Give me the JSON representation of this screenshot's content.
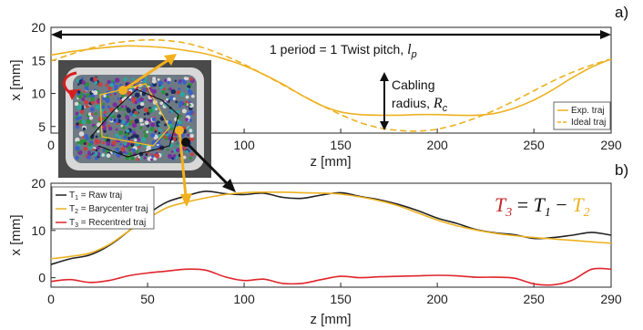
{
  "colors": {
    "exp": "#EDB120",
    "raw": "#222222",
    "bary": "#EDB120",
    "recentred": "#E0242B",
    "cable_red": "#D81E1E",
    "arrow_orange": "#F2B01E"
  },
  "chart_data": [
    {
      "type": "line",
      "panel_label": "a)",
      "xlabel": "z [mm]",
      "ylabel": "x [mm]",
      "xlim": [
        0,
        290
      ],
      "ylim": [
        4,
        20
      ],
      "xticks": [
        0,
        50,
        100,
        150,
        200,
        250,
        290
      ],
      "xtick_labels": [
        "0",
        "50",
        "100",
        "150",
        "200",
        "250",
        "290"
      ],
      "yticks": [
        5,
        10,
        15,
        20
      ],
      "ytick_labels": [
        "5",
        "10",
        "15",
        "20"
      ],
      "legend_position": "bottom-right",
      "series": [
        {
          "name": "Exp. traj",
          "style": "solid",
          "x": [
            0,
            10,
            20,
            30,
            40,
            50,
            60,
            70,
            80,
            90,
            100,
            110,
            120,
            130,
            140,
            150,
            160,
            170,
            180,
            190,
            200,
            210,
            220,
            230,
            240,
            250,
            260,
            270,
            280,
            290
          ],
          "y": [
            15.8,
            16.3,
            16.7,
            17.0,
            17.2,
            17.1,
            16.9,
            16.5,
            16.0,
            15.2,
            14.2,
            12.9,
            11.4,
            9.7,
            8.2,
            7.2,
            6.8,
            6.7,
            6.7,
            6.8,
            6.8,
            6.7,
            6.7,
            7.0,
            7.8,
            9.0,
            10.6,
            12.4,
            14.0,
            15.2
          ]
        },
        {
          "name": "Ideal traj",
          "style": "dashed",
          "x": [
            0,
            10,
            20,
            30,
            40,
            50,
            60,
            70,
            80,
            90,
            100,
            110,
            120,
            130,
            140,
            150,
            160,
            170,
            180,
            190,
            200,
            210,
            220,
            230,
            240,
            250,
            260,
            270,
            280,
            290
          ],
          "y": [
            14.9,
            15.9,
            16.8,
            17.5,
            17.9,
            18.1,
            18.0,
            17.6,
            16.8,
            15.7,
            14.4,
            12.9,
            11.3,
            9.7,
            8.2,
            6.8,
            5.6,
            4.8,
            4.4,
            4.3,
            4.6,
            5.3,
            6.3,
            7.5,
            8.9,
            10.4,
            11.9,
            13.2,
            14.3,
            15.2
          ]
        }
      ],
      "annotations": {
        "twist_pitch_text": "1 period = 1 Twist pitch, ",
        "twist_pitch_symbol": "l",
        "twist_pitch_sub": "p",
        "radius_line1": "Cabling",
        "radius_line2": "radius, ",
        "radius_symbol": "R",
        "radius_sub": "c"
      }
    },
    {
      "type": "line",
      "panel_label": "b)",
      "xlabel": "z [mm]",
      "ylabel": "x [mm]",
      "xlim": [
        0,
        290
      ],
      "ylim": [
        -2,
        20
      ],
      "xticks": [
        0,
        50,
        100,
        150,
        200,
        250,
        290
      ],
      "xtick_labels": [
        "0",
        "50",
        "100",
        "150",
        "200",
        "250",
        "290"
      ],
      "yticks": [
        0,
        10,
        20
      ],
      "ytick_labels": [
        "0",
        "10",
        "20"
      ],
      "legend_position": "top-left",
      "series": [
        {
          "sym": "T",
          "sub": "1",
          "name": " = Raw traj",
          "x": [
            0,
            10,
            20,
            30,
            40,
            50,
            60,
            70,
            80,
            90,
            100,
            110,
            120,
            130,
            140,
            150,
            160,
            170,
            180,
            190,
            200,
            210,
            220,
            230,
            240,
            250,
            260,
            270,
            280,
            290
          ],
          "y": [
            2.8,
            4.0,
            4.8,
            6.8,
            9.8,
            13.4,
            16.0,
            17.3,
            18.3,
            17.8,
            17.6,
            17.9,
            17.0,
            16.8,
            17.5,
            18.0,
            17.2,
            16.5,
            15.5,
            14.2,
            12.6,
            11.5,
            10.2,
            9.5,
            9.1,
            8.3,
            8.5,
            9.0,
            9.6,
            9.0
          ]
        },
        {
          "sym": "T",
          "sub": "2",
          "name": " = Barycenter traj",
          "x": [
            0,
            10,
            20,
            30,
            40,
            50,
            60,
            70,
            80,
            90,
            100,
            110,
            120,
            130,
            140,
            150,
            160,
            170,
            180,
            190,
            200,
            210,
            220,
            230,
            240,
            250,
            260,
            270,
            280,
            290
          ],
          "y": [
            4.0,
            4.5,
            5.2,
            7.0,
            9.8,
            12.5,
            14.8,
            16.0,
            16.9,
            17.6,
            18.0,
            18.1,
            18.1,
            18.0,
            17.9,
            17.7,
            17.1,
            16.3,
            15.2,
            13.7,
            12.2,
            11.0,
            10.1,
            9.4,
            8.9,
            8.5,
            8.2,
            7.9,
            7.6,
            7.3
          ]
        },
        {
          "sym": "T",
          "sub": "3",
          "name": " = Recentred traj",
          "x": [
            0,
            10,
            20,
            30,
            40,
            50,
            60,
            70,
            80,
            90,
            100,
            110,
            120,
            130,
            140,
            150,
            160,
            170,
            180,
            190,
            200,
            210,
            220,
            230,
            240,
            250,
            260,
            270,
            280,
            290
          ],
          "y": [
            -0.8,
            -0.4,
            -1.0,
            -0.6,
            0.4,
            1.0,
            1.4,
            1.8,
            1.6,
            0.2,
            -0.6,
            -0.3,
            -1.2,
            -1.2,
            -0.4,
            0.3,
            0.0,
            0.2,
            0.3,
            0.4,
            0.5,
            0.4,
            0.1,
            0.1,
            -0.1,
            -1.3,
            -1.5,
            -0.5,
            1.8,
            1.8
          ]
        }
      ],
      "equation": {
        "lhs_sym": "T",
        "lhs_sub": "3",
        "mid": " = ",
        "a_sym": "T",
        "a_sub": "1",
        "minus": " − ",
        "b_sym": "T",
        "b_sub": "2"
      }
    }
  ]
}
